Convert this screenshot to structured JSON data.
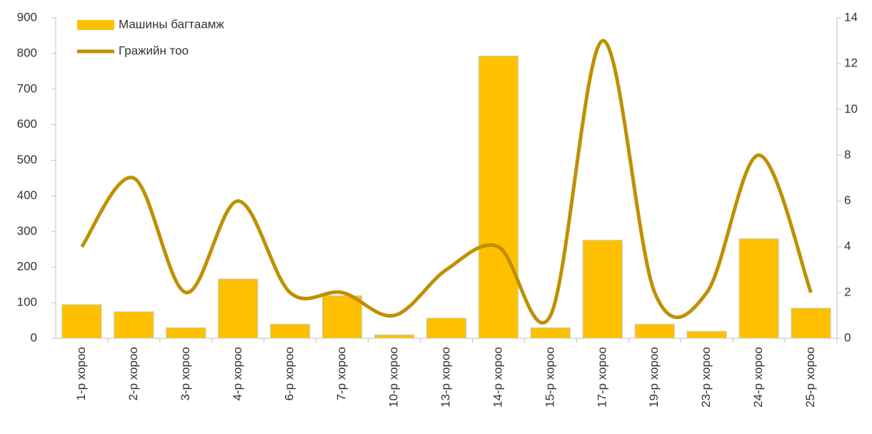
{
  "chart_data": {
    "type": "bar_line",
    "categories": [
      "1-р хороо",
      "2-р хороо",
      "3-р хороо",
      "4-р хороо",
      "6-р хороо",
      "7-р хороо",
      "10-р хороо",
      "13-р хороо",
      "14-р хороо",
      "15-р хороо",
      "17-р хороо",
      "19-р хороо",
      "23-р хороо",
      "24-р хороо",
      "25-р хороо"
    ],
    "series": [
      {
        "name": "Машины багтаамж",
        "type": "bar",
        "color": "#ffc000",
        "values": [
          95,
          75,
          30,
          167,
          40,
          120,
          10,
          57,
          793,
          30,
          276,
          40,
          20,
          280,
          85
        ]
      },
      {
        "name": "Гражийн тоо",
        "type": "line",
        "axis": "y2",
        "color": "#bf9000",
        "values": [
          4,
          7,
          2,
          6,
          2,
          2,
          1,
          3,
          4,
          1,
          13,
          2,
          2,
          8,
          2
        ]
      }
    ],
    "ylim": [
      0,
      900
    ],
    "yticks": [
      0,
      100,
      200,
      300,
      400,
      500,
      600,
      700,
      800,
      900
    ],
    "y2lim": [
      0,
      14
    ],
    "y2ticks": [
      0,
      2,
      4,
      6,
      8,
      10,
      12,
      14
    ],
    "legend": "top-left",
    "grid": false
  }
}
